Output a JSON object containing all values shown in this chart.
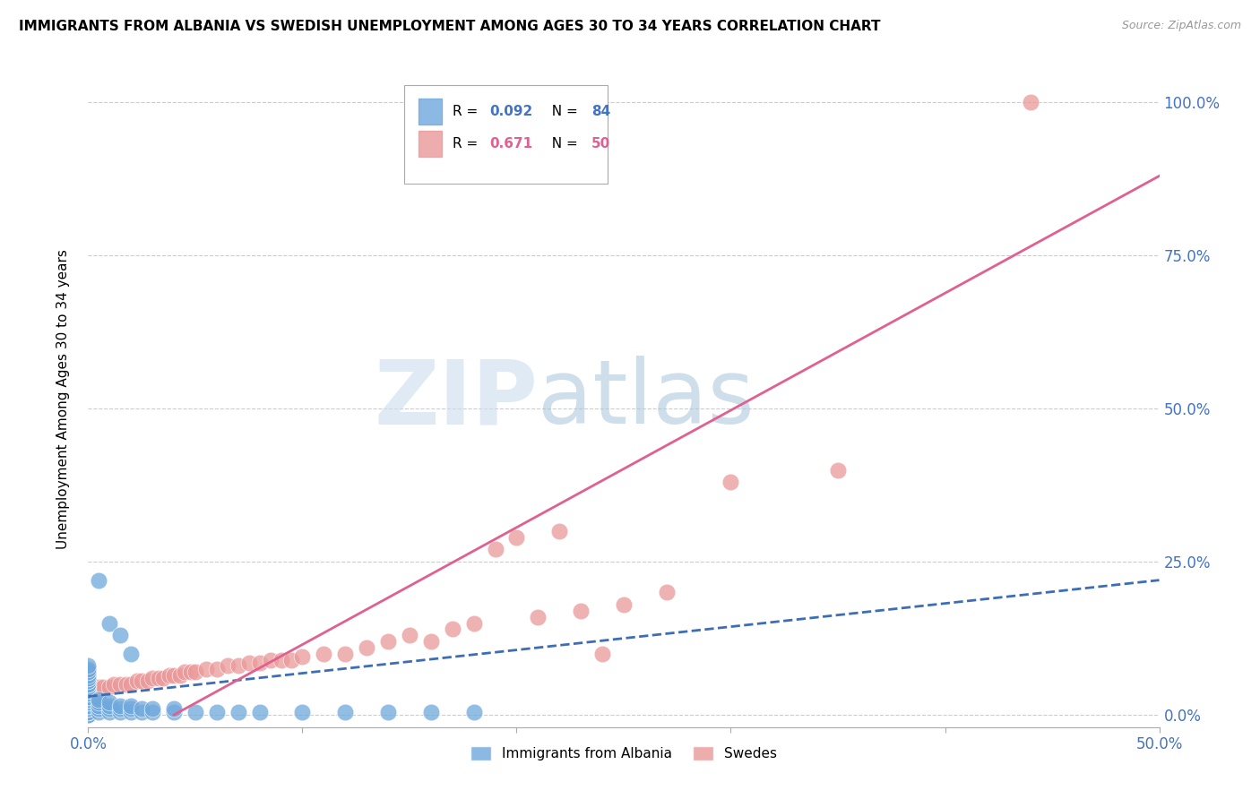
{
  "title": "IMMIGRANTS FROM ALBANIA VS SWEDISH UNEMPLOYMENT AMONG AGES 30 TO 34 YEARS CORRELATION CHART",
  "source": "Source: ZipAtlas.com",
  "ylabel": "Unemployment Among Ages 30 to 34 years",
  "xlim": [
    0.0,
    0.5
  ],
  "ylim": [
    -0.02,
    1.05
  ],
  "color_albania": "#6fa8dc",
  "color_swedes": "#ea9999",
  "color_albania_line": "#3d6eb5",
  "color_swedes_line": "#e06090",
  "color_axis_labels": "#4472c4",
  "watermark_zip": "#c8d8ef",
  "watermark_atlas": "#a0b8d8",
  "background_color": "#ffffff",
  "grid_color": "#cccccc",
  "albania_x": [
    0.0,
    0.0,
    0.0,
    0.0,
    0.0,
    0.0,
    0.0,
    0.0,
    0.0,
    0.0,
    0.0,
    0.0,
    0.0,
    0.0,
    0.0,
    0.0,
    0.0,
    0.0,
    0.0,
    0.0,
    0.0,
    0.0,
    0.0,
    0.0,
    0.0,
    0.0,
    0.0,
    0.0,
    0.0,
    0.0,
    0.0,
    0.0,
    0.0,
    0.0,
    0.0,
    0.0,
    0.0,
    0.0,
    0.0,
    0.0,
    0.0,
    0.0,
    0.0,
    0.0,
    0.0,
    0.0,
    0.0,
    0.0,
    0.0,
    0.0,
    0.005,
    0.005,
    0.005,
    0.005,
    0.005,
    0.01,
    0.01,
    0.01,
    0.01,
    0.015,
    0.015,
    0.015,
    0.02,
    0.02,
    0.02,
    0.025,
    0.025,
    0.03,
    0.03,
    0.04,
    0.04,
    0.05,
    0.06,
    0.07,
    0.08,
    0.1,
    0.12,
    0.14,
    0.16,
    0.18,
    0.005,
    0.01,
    0.015,
    0.02
  ],
  "albania_y": [
    0.0,
    0.0,
    0.0,
    0.0,
    0.0,
    0.0,
    0.0,
    0.0,
    0.0,
    0.0,
    0.005,
    0.005,
    0.005,
    0.005,
    0.01,
    0.01,
    0.01,
    0.01,
    0.01,
    0.015,
    0.015,
    0.015,
    0.02,
    0.02,
    0.02,
    0.025,
    0.025,
    0.025,
    0.03,
    0.03,
    0.03,
    0.035,
    0.035,
    0.04,
    0.04,
    0.04,
    0.045,
    0.045,
    0.05,
    0.05,
    0.05,
    0.055,
    0.055,
    0.06,
    0.06,
    0.065,
    0.07,
    0.07,
    0.075,
    0.08,
    0.005,
    0.01,
    0.015,
    0.02,
    0.025,
    0.005,
    0.01,
    0.015,
    0.02,
    0.005,
    0.01,
    0.015,
    0.005,
    0.01,
    0.015,
    0.005,
    0.01,
    0.005,
    0.01,
    0.005,
    0.01,
    0.005,
    0.005,
    0.005,
    0.005,
    0.005,
    0.005,
    0.005,
    0.005,
    0.005,
    0.22,
    0.15,
    0.13,
    0.1
  ],
  "swedes_x": [
    0.0,
    0.003,
    0.005,
    0.007,
    0.01,
    0.012,
    0.015,
    0.018,
    0.02,
    0.023,
    0.025,
    0.028,
    0.03,
    0.033,
    0.035,
    0.038,
    0.04,
    0.043,
    0.045,
    0.048,
    0.05,
    0.055,
    0.06,
    0.065,
    0.07,
    0.075,
    0.08,
    0.085,
    0.09,
    0.095,
    0.1,
    0.11,
    0.12,
    0.13,
    0.14,
    0.15,
    0.16,
    0.17,
    0.18,
    0.19,
    0.2,
    0.21,
    0.22,
    0.23,
    0.24,
    0.25,
    0.27,
    0.3,
    0.35,
    0.44
  ],
  "swedes_y": [
    0.04,
    0.04,
    0.045,
    0.045,
    0.045,
    0.05,
    0.05,
    0.05,
    0.05,
    0.055,
    0.055,
    0.055,
    0.06,
    0.06,
    0.06,
    0.065,
    0.065,
    0.065,
    0.07,
    0.07,
    0.07,
    0.075,
    0.075,
    0.08,
    0.08,
    0.085,
    0.085,
    0.09,
    0.09,
    0.09,
    0.095,
    0.1,
    0.1,
    0.11,
    0.12,
    0.13,
    0.12,
    0.14,
    0.15,
    0.27,
    0.29,
    0.16,
    0.3,
    0.17,
    0.1,
    0.18,
    0.2,
    0.38,
    0.4,
    1.0
  ],
  "albania_trend_x": [
    0.0,
    0.5
  ],
  "albania_trend_y": [
    0.03,
    0.22
  ],
  "swedes_trend_x": [
    0.04,
    0.5
  ],
  "swedes_trend_y": [
    0.0,
    0.88
  ]
}
